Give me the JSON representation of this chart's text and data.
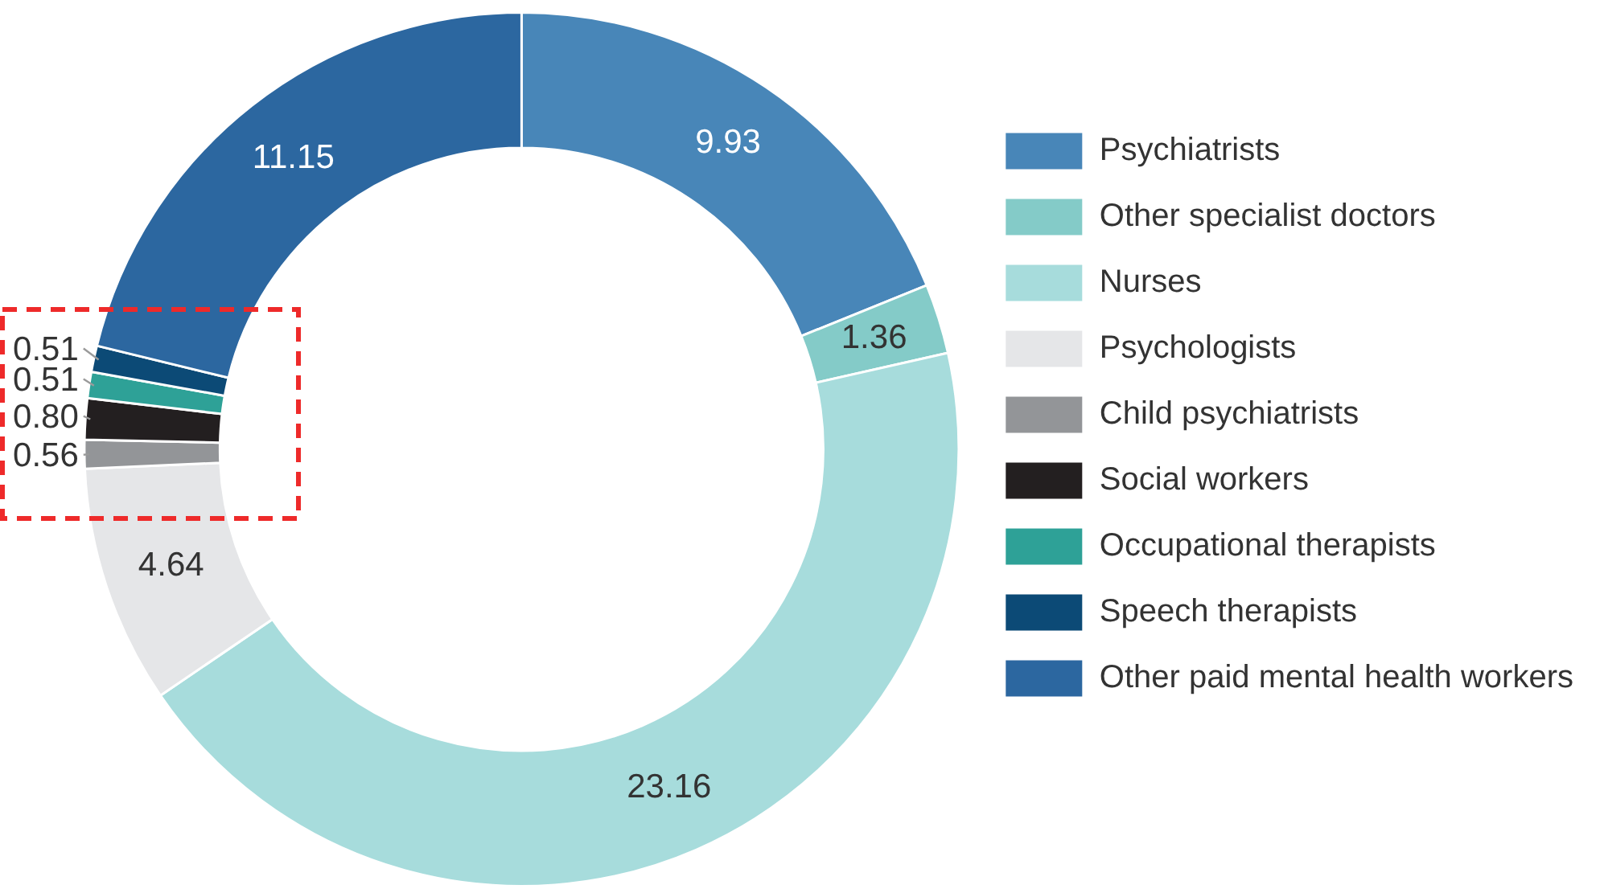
{
  "chart_data": {
    "type": "donut",
    "categories": [
      "Psychiatrists",
      "Other specialist doctors",
      "Nurses",
      "Psychologists",
      "Child psychiatrists",
      "Social workers",
      "Occupational therapists",
      "Speech therapists",
      "Other paid mental health workers"
    ],
    "values": [
      9.93,
      1.36,
      23.16,
      4.64,
      0.56,
      0.8,
      0.51,
      0.51,
      11.15
    ],
    "colors": [
      "#4886b8",
      "#84cbc8",
      "#a7dcdc",
      "#e5e6e8",
      "#939598",
      "#231f20",
      "#2ea197",
      "#0c4a76",
      "#2c67a0"
    ],
    "value_labels": [
      "9.93",
      "1.36",
      "23.16",
      "4.64",
      "0.56",
      "0.80",
      "0.51",
      "0.51",
      "11.15"
    ],
    "legend": "right"
  }
}
